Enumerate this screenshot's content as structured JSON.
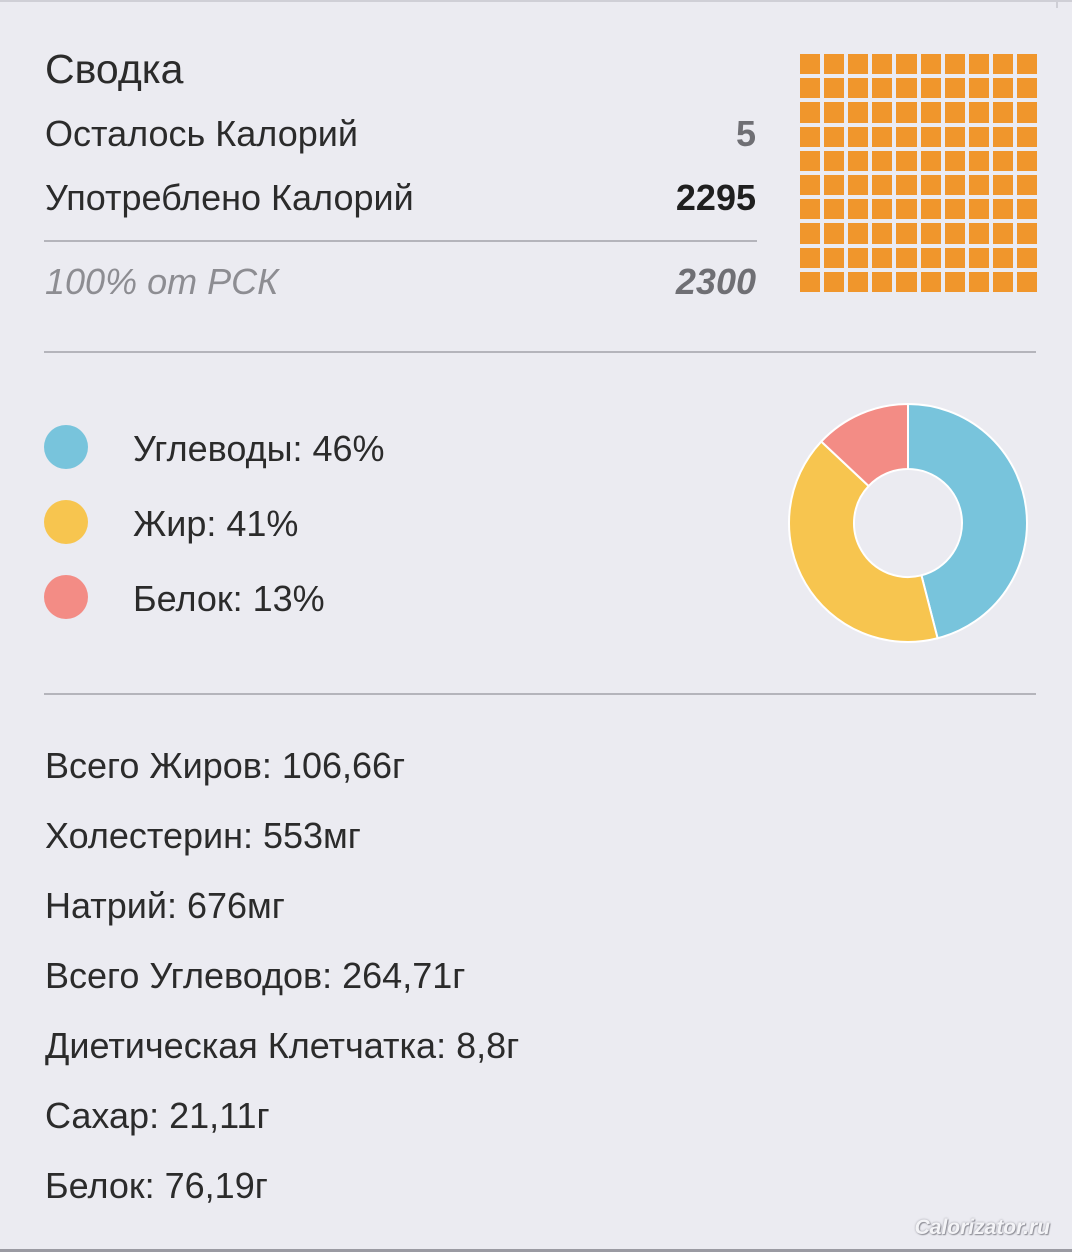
{
  "summary": {
    "title": "Сводка",
    "remaining_label": "Осталось Калорий",
    "remaining_value": "5",
    "consumed_label": "Употреблено Калорий",
    "consumed_value": "2295",
    "rsk_label": "100% от РСК",
    "rsk_value": "2300",
    "waffle": {
      "filled_fraction": 0.998,
      "color": "#f0962c"
    }
  },
  "macros": {
    "items": [
      {
        "label": "Углеводы: 46%",
        "percent": 46,
        "color": "#78c4dc",
        "icon": "carbs-dot-icon"
      },
      {
        "label": "Жир: 41%",
        "percent": 41,
        "color": "#f7c54f",
        "icon": "fat-dot-icon"
      },
      {
        "label": "Белок: 13%",
        "percent": 13,
        "color": "#f38c85",
        "icon": "protein-dot-icon"
      }
    ]
  },
  "nutrients": [
    "Всего Жиров: 106,66г",
    "Холестерин: 553мг",
    "Натрий: 676мг",
    "Всего Углеводов: 264,71г",
    "Диетическая Клетчатка: 8,8г",
    "Сахар: 21,11г",
    "Белок: 76,19г"
  ],
  "watermark": "Calorizator.ru"
}
